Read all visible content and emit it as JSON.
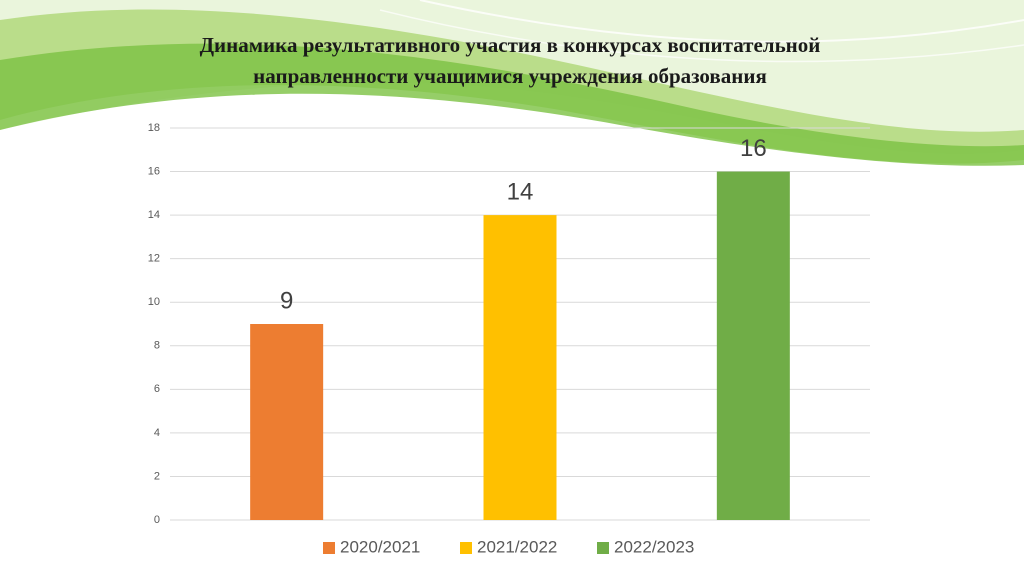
{
  "chart_data": {
    "type": "bar",
    "title": "Динамика результативного участия в конкурсах воспитательной направленности учащимися учреждения образования",
    "categories": [
      null
    ],
    "series": [
      {
        "name": "2020/2021",
        "color": "#ed7d31",
        "values": [
          9
        ]
      },
      {
        "name": "2021/2022",
        "color": "#ffc000",
        "values": [
          14
        ]
      },
      {
        "name": "2022/2023",
        "color": "#70ad47",
        "values": [
          16
        ]
      }
    ],
    "ylim": [
      0,
      18
    ],
    "yticks": [
      0,
      2,
      4,
      6,
      8,
      10,
      12,
      14,
      16,
      18
    ],
    "grid": true,
    "legend": "bottom"
  }
}
